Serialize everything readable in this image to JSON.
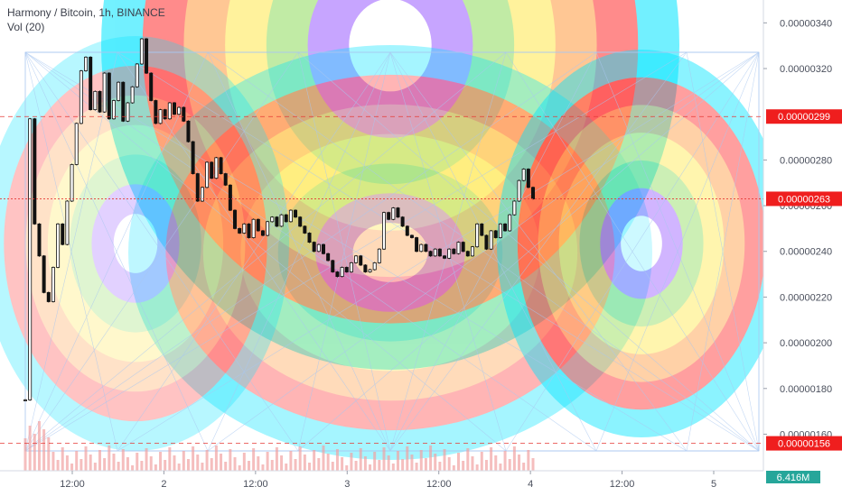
{
  "legend": {
    "symbol": "Harmony / Bitcoin, 1h, BINANCE",
    "volume": "Vol (20)"
  },
  "colors": {
    "candle": "#111111",
    "price_line": "#e53935",
    "price_tag": "#ef1e1e",
    "volume": "#f1a3a3",
    "axis_text": "#4a4f5c",
    "grid": "#eef1f6"
  },
  "chart_data": {
    "type": "candlestick",
    "title": "Harmony / Bitcoin, 1h, BINANCE",
    "indicator": "Vol (20)",
    "ylim": [
      1.44e-06,
      3.5e-06
    ],
    "y_ticks": [
      "0.00000340",
      "0.00000320",
      "0.00000280",
      "0.00000260",
      "0.00000240",
      "0.00000220",
      "0.00000200",
      "0.00000180",
      "0.00000160"
    ],
    "x_ticks": [
      "12:00",
      "2",
      "12:00",
      "3",
      "12:00",
      "4",
      "12:00",
      "5"
    ],
    "last_price": "0.00000263",
    "marked_prices": [
      "0.00000299",
      "0.00000156"
    ],
    "volume_readout": "6.416M",
    "close_series": [
      1.75e-06,
      2.98e-06,
      2.52e-06,
      2.38e-06,
      2.22e-06,
      2.18e-06,
      2.33e-06,
      2.52e-06,
      2.43e-06,
      2.62e-06,
      2.78e-06,
      2.96e-06,
      3.19e-06,
      3.25e-06,
      3.02e-06,
      3.1e-06,
      3.01e-06,
      3.18e-06,
      2.98e-06,
      3.06e-06,
      3.14e-06,
      2.97e-06,
      3.05e-06,
      3.12e-06,
      3.22e-06,
      3.33e-06,
      3.18e-06,
      3.06e-06,
      2.96e-06,
      3.02e-06,
      2.98e-06,
      3.05e-06,
      3e-06,
      3.03e-06,
      2.97e-06,
      2.88e-06,
      2.74e-06,
      2.62e-06,
      2.68e-06,
      2.79e-06,
      2.72e-06,
      2.81e-06,
      2.74e-06,
      2.69e-06,
      2.58e-06,
      2.5e-06,
      2.48e-06,
      2.52e-06,
      2.46e-06,
      2.54e-06,
      2.49e-06,
      2.47e-06,
      2.53e-06,
      2.55e-06,
      2.51e-06,
      2.56e-06,
      2.53e-06,
      2.58e-06,
      2.55e-06,
      2.51e-06,
      2.48e-06,
      2.44e-06,
      2.4e-06,
      2.43e-06,
      2.39e-06,
      2.36e-06,
      2.31e-06,
      2.29e-06,
      2.33e-06,
      2.31e-06,
      2.35e-06,
      2.38e-06,
      2.34e-06,
      2.31e-06,
      2.32e-06,
      2.35e-06,
      2.41e-06,
      2.57e-06,
      2.54e-06,
      2.59e-06,
      2.55e-06,
      2.51e-06,
      2.47e-06,
      2.46e-06,
      2.4e-06,
      2.43e-06,
      2.4e-06,
      2.38e-06,
      2.41e-06,
      2.38e-06,
      2.37e-06,
      2.41e-06,
      2.39e-06,
      2.44e-06,
      2.4e-06,
      2.38e-06,
      2.42e-06,
      2.52e-06,
      2.47e-06,
      2.41e-06,
      2.49e-06,
      2.46e-06,
      2.52e-06,
      2.49e-06,
      2.56e-06,
      2.62e-06,
      2.71e-06,
      2.76e-06,
      2.68e-06,
      2.63e-06
    ]
  }
}
